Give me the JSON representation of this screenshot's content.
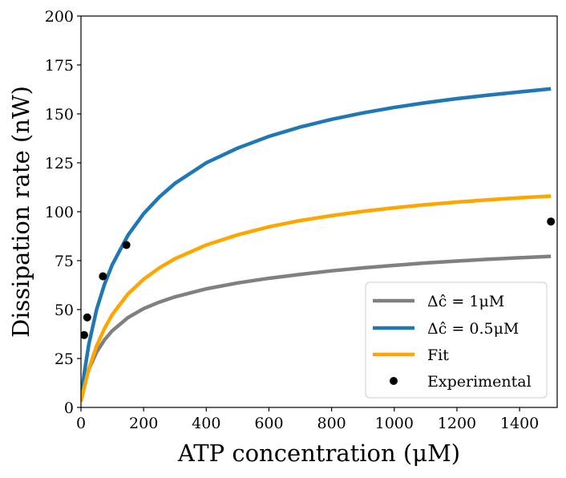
{
  "chart_data": {
    "type": "line",
    "title": "",
    "xlabel": "ATP concentration (μM)",
    "ylabel": "Dissipation rate (nW)",
    "xlim": [
      0,
      1520
    ],
    "ylim": [
      0,
      200
    ],
    "xticks": [
      0,
      200,
      400,
      600,
      800,
      1000,
      1200,
      1400
    ],
    "yticks": [
      0,
      25,
      50,
      75,
      100,
      125,
      150,
      175,
      200
    ],
    "grid": false,
    "legend_position": "lower-right",
    "series": [
      {
        "name": "Δĉ = 1μM",
        "kind": "line",
        "color": "#808080",
        "x": [
          0,
          10,
          25,
          50,
          75,
          100,
          150,
          200,
          250,
          300,
          400,
          500,
          600,
          700,
          800,
          900,
          1000,
          1100,
          1200,
          1300,
          1400,
          1500
        ],
        "y": [
          3.0,
          11.6,
          19.5,
          28.3,
          34.5,
          39.2,
          45.9,
          50.5,
          53.8,
          56.5,
          60.6,
          63.6,
          66.0,
          68.0,
          69.8,
          71.3,
          72.6,
          73.8,
          74.8,
          75.7,
          76.5,
          77.2
        ]
      },
      {
        "name": "Δĉ = 0.5μM",
        "kind": "line",
        "color": "#1f77b4",
        "x": [
          0,
          10,
          25,
          50,
          75,
          100,
          150,
          200,
          250,
          300,
          400,
          500,
          600,
          700,
          800,
          900,
          1000,
          1100,
          1200,
          1300,
          1400,
          1500
        ],
        "y": [
          3.0,
          17.0,
          32.2,
          50.1,
          62.9,
          73.0,
          88.0,
          99.0,
          107.5,
          114.5,
          125.0,
          132.5,
          138.5,
          143.3,
          147.2,
          150.5,
          153.3,
          155.7,
          157.8,
          159.6,
          161.2,
          162.8
        ]
      },
      {
        "name": "Fit",
        "kind": "line",
        "color": "#ffa500",
        "x": [
          0,
          10,
          25,
          50,
          75,
          100,
          150,
          200,
          250,
          300,
          400,
          500,
          600,
          700,
          800,
          900,
          1000,
          1100,
          1200,
          1300,
          1400,
          1500
        ],
        "y": [
          3.0,
          10.0,
          19.6,
          31.5,
          40.3,
          47.5,
          58.0,
          65.5,
          71.3,
          76.0,
          83.0,
          88.2,
          92.3,
          95.5,
          98.0,
          100.2,
          102.0,
          103.6,
          104.9,
          106.1,
          107.1,
          108.0
        ]
      },
      {
        "name": "Experimental",
        "kind": "scatter",
        "color": "#000000",
        "x": [
          10,
          20,
          70,
          145,
          1500
        ],
        "y": [
          37,
          46,
          67,
          83,
          95
        ]
      }
    ]
  }
}
